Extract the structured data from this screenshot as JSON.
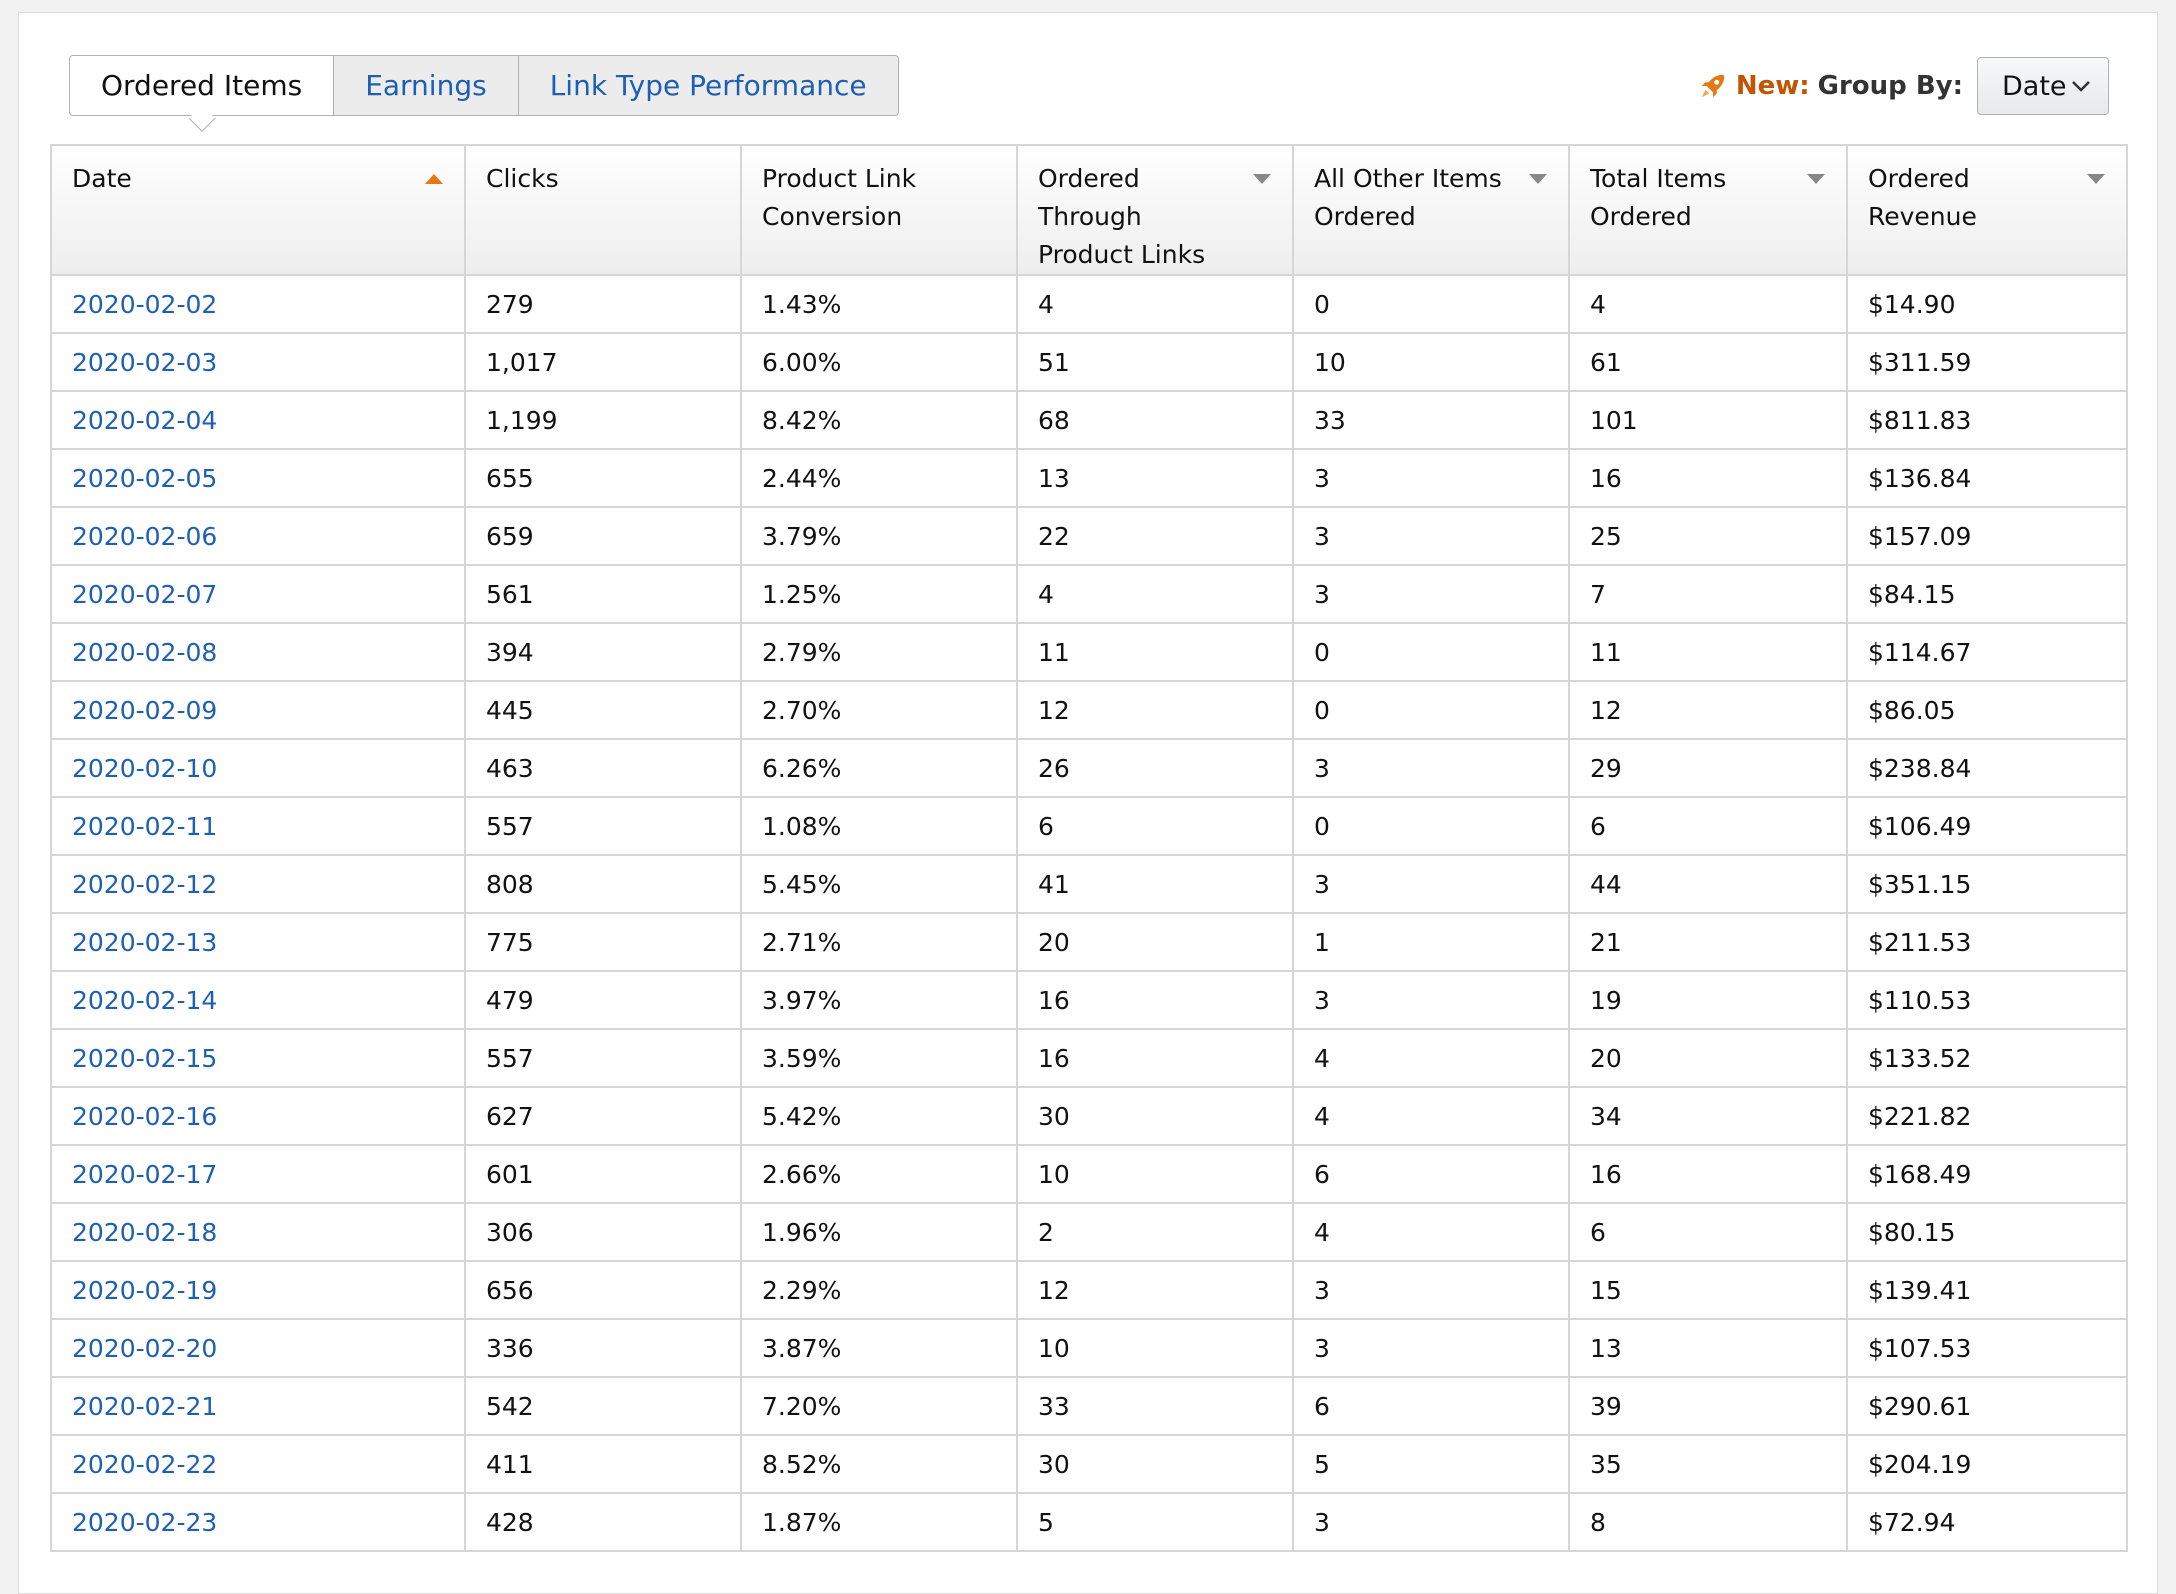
{
  "tabs": [
    {
      "label": "Ordered Items",
      "active": true
    },
    {
      "label": "Earnings",
      "active": false
    },
    {
      "label": "Link Type Performance",
      "active": false
    }
  ],
  "group_by": {
    "new_label": "New:",
    "label": "Group By:",
    "selected": "Date",
    "icon": "rocket-icon"
  },
  "columns": [
    {
      "label": "Date",
      "sort": "asc-active"
    },
    {
      "label": "Clicks",
      "sort": "none"
    },
    {
      "label": "Product Link Conversion",
      "sort": "none"
    },
    {
      "label": "Ordered Through Product Links",
      "sort": "desc"
    },
    {
      "label": "All Other Items Ordered",
      "sort": "desc"
    },
    {
      "label": "Total Items Ordered",
      "sort": "desc"
    },
    {
      "label": "Ordered Revenue",
      "sort": "desc"
    }
  ],
  "rows": [
    [
      "2020-02-02",
      "279",
      "1.43%",
      "4",
      "0",
      "4",
      "$14.90"
    ],
    [
      "2020-02-03",
      "1,017",
      "6.00%",
      "51",
      "10",
      "61",
      "$311.59"
    ],
    [
      "2020-02-04",
      "1,199",
      "8.42%",
      "68",
      "33",
      "101",
      "$811.83"
    ],
    [
      "2020-02-05",
      "655",
      "2.44%",
      "13",
      "3",
      "16",
      "$136.84"
    ],
    [
      "2020-02-06",
      "659",
      "3.79%",
      "22",
      "3",
      "25",
      "$157.09"
    ],
    [
      "2020-02-07",
      "561",
      "1.25%",
      "4",
      "3",
      "7",
      "$84.15"
    ],
    [
      "2020-02-08",
      "394",
      "2.79%",
      "11",
      "0",
      "11",
      "$114.67"
    ],
    [
      "2020-02-09",
      "445",
      "2.70%",
      "12",
      "0",
      "12",
      "$86.05"
    ],
    [
      "2020-02-10",
      "463",
      "6.26%",
      "26",
      "3",
      "29",
      "$238.84"
    ],
    [
      "2020-02-11",
      "557",
      "1.08%",
      "6",
      "0",
      "6",
      "$106.49"
    ],
    [
      "2020-02-12",
      "808",
      "5.45%",
      "41",
      "3",
      "44",
      "$351.15"
    ],
    [
      "2020-02-13",
      "775",
      "2.71%",
      "20",
      "1",
      "21",
      "$211.53"
    ],
    [
      "2020-02-14",
      "479",
      "3.97%",
      "16",
      "3",
      "19",
      "$110.53"
    ],
    [
      "2020-02-15",
      "557",
      "3.59%",
      "16",
      "4",
      "20",
      "$133.52"
    ],
    [
      "2020-02-16",
      "627",
      "5.42%",
      "30",
      "4",
      "34",
      "$221.82"
    ],
    [
      "2020-02-17",
      "601",
      "2.66%",
      "10",
      "6",
      "16",
      "$168.49"
    ],
    [
      "2020-02-18",
      "306",
      "1.96%",
      "2",
      "4",
      "6",
      "$80.15"
    ],
    [
      "2020-02-19",
      "656",
      "2.29%",
      "12",
      "3",
      "15",
      "$139.41"
    ],
    [
      "2020-02-20",
      "336",
      "3.87%",
      "10",
      "3",
      "13",
      "$107.53"
    ],
    [
      "2020-02-21",
      "542",
      "7.20%",
      "33",
      "6",
      "39",
      "$290.61"
    ],
    [
      "2020-02-22",
      "411",
      "8.52%",
      "30",
      "5",
      "35",
      "$204.19"
    ],
    [
      "2020-02-23",
      "428",
      "1.87%",
      "5",
      "3",
      "8",
      "$72.94"
    ]
  ],
  "colors": {
    "link": "#1e5fb4",
    "accent_orange": "#e47911",
    "new_label": "#c45500",
    "sort_arrow": "#888888"
  }
}
